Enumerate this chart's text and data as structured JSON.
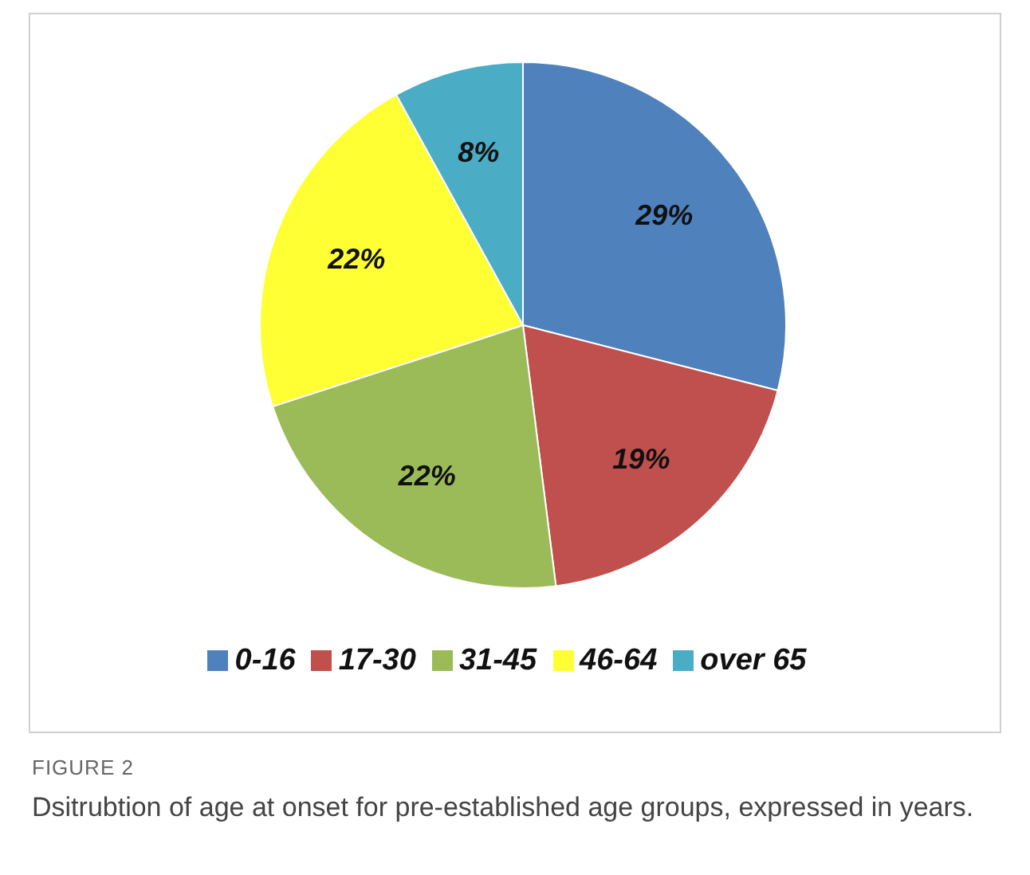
{
  "chart_data": {
    "type": "pie",
    "categories": [
      "0-16",
      "17-30",
      "31-45",
      "46-64",
      "over 65"
    ],
    "values": [
      29,
      19,
      22,
      22,
      8
    ],
    "value_labels": [
      "29%",
      "19%",
      "22%",
      "22%",
      "8%"
    ],
    "colors": [
      "#4f81bd",
      "#c0504d",
      "#9bbb59",
      "#ffff33",
      "#4bacc6"
    ],
    "legend": "bottom",
    "annotations": [
      "FIGURE 2",
      "Dsitrubtion of age at onset for pre-established age groups, expressed in years."
    ]
  }
}
